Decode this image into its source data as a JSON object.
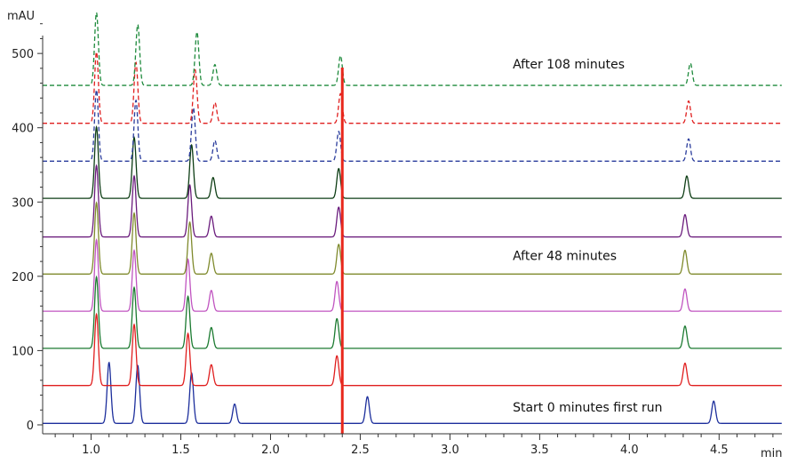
{
  "chart_data": {
    "type": "line",
    "ylabel": "mAU",
    "xlabel": "min",
    "xlim": [
      0.73,
      4.85
    ],
    "ylim": [
      -12,
      560
    ],
    "x_ticks": [
      1.0,
      1.5,
      2.0,
      2.5,
      3.0,
      3.5,
      4.0,
      4.5
    ],
    "x_tick_labels": [
      "1.0",
      "1.5",
      "2.0",
      "2.5",
      "3.0",
      "3.5",
      "4.0",
      "4.5"
    ],
    "y_ticks": [
      0,
      100,
      200,
      300,
      400,
      500
    ],
    "y_tick_labels": [
      "0",
      "100",
      "200",
      "300",
      "400",
      "500"
    ],
    "grid": false,
    "marker_line": {
      "x": 2.4,
      "color": "#e8271c"
    },
    "annotations": [
      {
        "text": "After 108 minutes",
        "x": 3.35,
        "y": 480
      },
      {
        "text": "After 48 minutes",
        "x": 3.35,
        "y": 222
      },
      {
        "text": "Start 0 minutes first run",
        "x": 3.35,
        "y": 18
      }
    ],
    "series": [
      {
        "color": "#1c2e9c",
        "dash": false,
        "baseline": 2,
        "peaks": [
          {
            "x": 1.1,
            "h": 82
          },
          {
            "x": 1.26,
            "h": 78
          },
          {
            "x": 1.56,
            "h": 68
          },
          {
            "x": 1.8,
            "h": 26
          },
          {
            "x": 2.54,
            "h": 36
          },
          {
            "x": 4.47,
            "h": 30
          }
        ]
      },
      {
        "color": "#e01e1e",
        "dash": false,
        "baseline": 53,
        "peaks": [
          {
            "x": 1.03,
            "h": 96
          },
          {
            "x": 1.24,
            "h": 82
          },
          {
            "x": 1.54,
            "h": 70
          },
          {
            "x": 1.67,
            "h": 28
          },
          {
            "x": 2.37,
            "h": 40
          },
          {
            "x": 4.31,
            "h": 30
          }
        ]
      },
      {
        "color": "#1b7a30",
        "dash": false,
        "baseline": 103,
        "peaks": [
          {
            "x": 1.03,
            "h": 96
          },
          {
            "x": 1.24,
            "h": 82
          },
          {
            "x": 1.54,
            "h": 70
          },
          {
            "x": 1.67,
            "h": 28
          },
          {
            "x": 2.37,
            "h": 40
          },
          {
            "x": 4.31,
            "h": 30
          }
        ]
      },
      {
        "color": "#c054c0",
        "dash": false,
        "baseline": 153,
        "peaks": [
          {
            "x": 1.03,
            "h": 96
          },
          {
            "x": 1.24,
            "h": 82
          },
          {
            "x": 1.54,
            "h": 70
          },
          {
            "x": 1.67,
            "h": 28
          },
          {
            "x": 2.37,
            "h": 40
          },
          {
            "x": 4.31,
            "h": 30
          }
        ]
      },
      {
        "color": "#7f8a2c",
        "dash": false,
        "baseline": 203,
        "peaks": [
          {
            "x": 1.03,
            "h": 96
          },
          {
            "x": 1.24,
            "h": 82
          },
          {
            "x": 1.55,
            "h": 70
          },
          {
            "x": 1.67,
            "h": 28
          },
          {
            "x": 2.38,
            "h": 40
          },
          {
            "x": 4.31,
            "h": 32
          }
        ]
      },
      {
        "color": "#6a1b7c",
        "dash": false,
        "baseline": 253,
        "peaks": [
          {
            "x": 1.03,
            "h": 96
          },
          {
            "x": 1.24,
            "h": 82
          },
          {
            "x": 1.55,
            "h": 70
          },
          {
            "x": 1.67,
            "h": 28
          },
          {
            "x": 2.38,
            "h": 40
          },
          {
            "x": 4.31,
            "h": 30
          }
        ]
      },
      {
        "color": "#0d3d14",
        "dash": false,
        "baseline": 305,
        "peaks": [
          {
            "x": 1.03,
            "h": 96
          },
          {
            "x": 1.24,
            "h": 82
          },
          {
            "x": 1.56,
            "h": 72
          },
          {
            "x": 1.68,
            "h": 28
          },
          {
            "x": 2.38,
            "h": 40
          },
          {
            "x": 4.32,
            "h": 30
          }
        ]
      },
      {
        "color": "#2a3c9c",
        "dash": true,
        "baseline": 355,
        "peaks": [
          {
            "x": 1.03,
            "h": 96
          },
          {
            "x": 1.25,
            "h": 82
          },
          {
            "x": 1.57,
            "h": 72
          },
          {
            "x": 1.69,
            "h": 28
          },
          {
            "x": 2.38,
            "h": 40
          },
          {
            "x": 4.33,
            "h": 30
          }
        ]
      },
      {
        "color": "#e01e1e",
        "dash": true,
        "baseline": 406,
        "peaks": [
          {
            "x": 1.03,
            "h": 96
          },
          {
            "x": 1.25,
            "h": 82
          },
          {
            "x": 1.58,
            "h": 72
          },
          {
            "x": 1.69,
            "h": 28
          },
          {
            "x": 2.39,
            "h": 40
          },
          {
            "x": 4.33,
            "h": 30
          }
        ]
      },
      {
        "color": "#1e8a3c",
        "dash": true,
        "baseline": 457,
        "peaks": [
          {
            "x": 1.03,
            "h": 98
          },
          {
            "x": 1.26,
            "h": 82
          },
          {
            "x": 1.59,
            "h": 72
          },
          {
            "x": 1.69,
            "h": 28
          },
          {
            "x": 2.39,
            "h": 40
          },
          {
            "x": 4.34,
            "h": 30
          }
        ]
      }
    ]
  }
}
